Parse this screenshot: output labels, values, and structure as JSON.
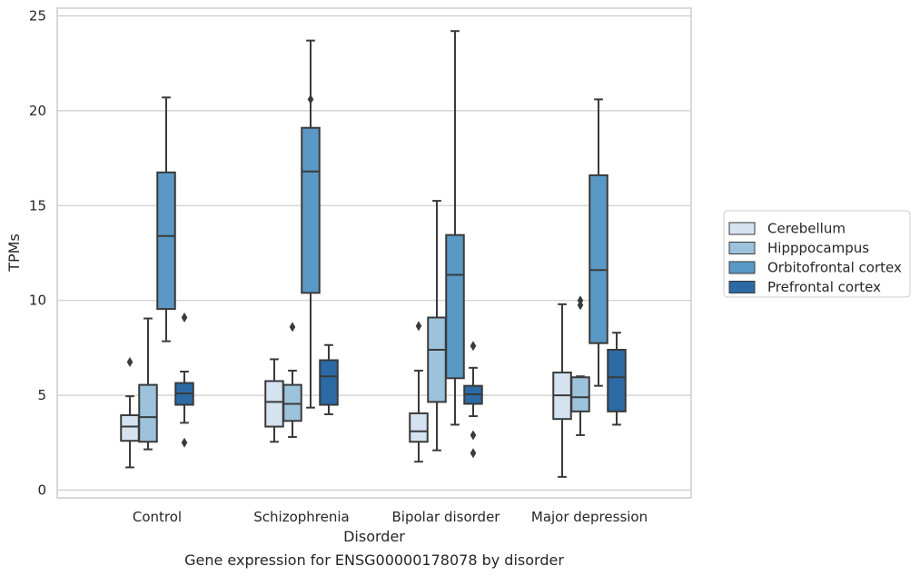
{
  "chart_data": {
    "type": "box",
    "title": "Gene expression for ENSG00000178078 by disorder",
    "xlabel": "Disorder",
    "ylabel": "TPMs",
    "ylim": [
      -0.4,
      25.5
    ],
    "yticks": [
      0,
      5,
      10,
      15,
      20,
      25
    ],
    "grid": true,
    "legend_position": "right",
    "categories": [
      "Control",
      "Schizophrenia",
      "Bipolar disorder",
      "Major depression"
    ],
    "series": [
      {
        "name": "Cerebellum",
        "color": "#d5e3f0",
        "boxes": [
          {
            "whislo": 1.2,
            "q1": 2.6,
            "med": 3.35,
            "q3": 3.95,
            "whishi": 4.95,
            "fliers": [
              6.75
            ]
          },
          {
            "whislo": 2.55,
            "q1": 3.35,
            "med": 4.65,
            "q3": 5.75,
            "whishi": 6.9,
            "fliers": []
          },
          {
            "whislo": 1.5,
            "q1": 2.55,
            "med": 3.1,
            "q3": 4.05,
            "whishi": 6.3,
            "fliers": [
              8.65
            ]
          },
          {
            "whislo": 0.7,
            "q1": 3.75,
            "med": 5.0,
            "q3": 6.2,
            "whishi": 9.8,
            "fliers": []
          }
        ]
      },
      {
        "name": "Hipppocampus",
        "color": "#9cc2dc",
        "boxes": [
          {
            "whislo": 2.15,
            "q1": 2.55,
            "med": 3.85,
            "q3": 5.55,
            "whishi": 9.05,
            "fliers": []
          },
          {
            "whislo": 2.8,
            "q1": 3.65,
            "med": 4.55,
            "q3": 5.55,
            "whishi": 6.3,
            "fliers": [
              8.6
            ]
          },
          {
            "whislo": 2.1,
            "q1": 4.65,
            "med": 7.4,
            "q3": 9.1,
            "whishi": 15.25,
            "fliers": []
          },
          {
            "whislo": 2.9,
            "q1": 4.15,
            "med": 4.9,
            "q3": 5.95,
            "whishi": 6.0,
            "fliers": [
              9.75,
              10.0
            ]
          }
        ]
      },
      {
        "name": "Orbitofrontal cortex",
        "color": "#5a99c5",
        "boxes": [
          {
            "whislo": 7.85,
            "q1": 9.55,
            "med": 13.4,
            "q3": 16.75,
            "whishi": 20.7,
            "fliers": []
          },
          {
            "whislo": 4.35,
            "q1": 10.4,
            "med": 16.8,
            "q3": 19.1,
            "whishi": 23.7,
            "fliers": [
              20.6
            ]
          },
          {
            "whislo": 3.45,
            "q1": 5.9,
            "med": 11.35,
            "q3": 13.45,
            "whishi": 24.2,
            "fliers": []
          },
          {
            "whislo": 5.5,
            "q1": 7.75,
            "med": 11.6,
            "q3": 16.6,
            "whishi": 20.6,
            "fliers": []
          }
        ]
      },
      {
        "name": "Prefrontal cortex",
        "color": "#2b6aa4",
        "boxes": [
          {
            "whislo": 3.55,
            "q1": 4.5,
            "med": 5.1,
            "q3": 5.65,
            "whishi": 6.25,
            "fliers": [
              9.1,
              2.5
            ]
          },
          {
            "whislo": 4.0,
            "q1": 4.5,
            "med": 6.0,
            "q3": 6.85,
            "whishi": 7.65,
            "fliers": []
          },
          {
            "whislo": 3.9,
            "q1": 4.55,
            "med": 5.05,
            "q3": 5.5,
            "whishi": 6.45,
            "fliers": [
              7.6,
              2.9,
              1.95
            ]
          },
          {
            "whislo": 3.45,
            "q1": 4.15,
            "med": 5.95,
            "q3": 7.4,
            "whishi": 8.3,
            "fliers": []
          }
        ]
      }
    ]
  }
}
